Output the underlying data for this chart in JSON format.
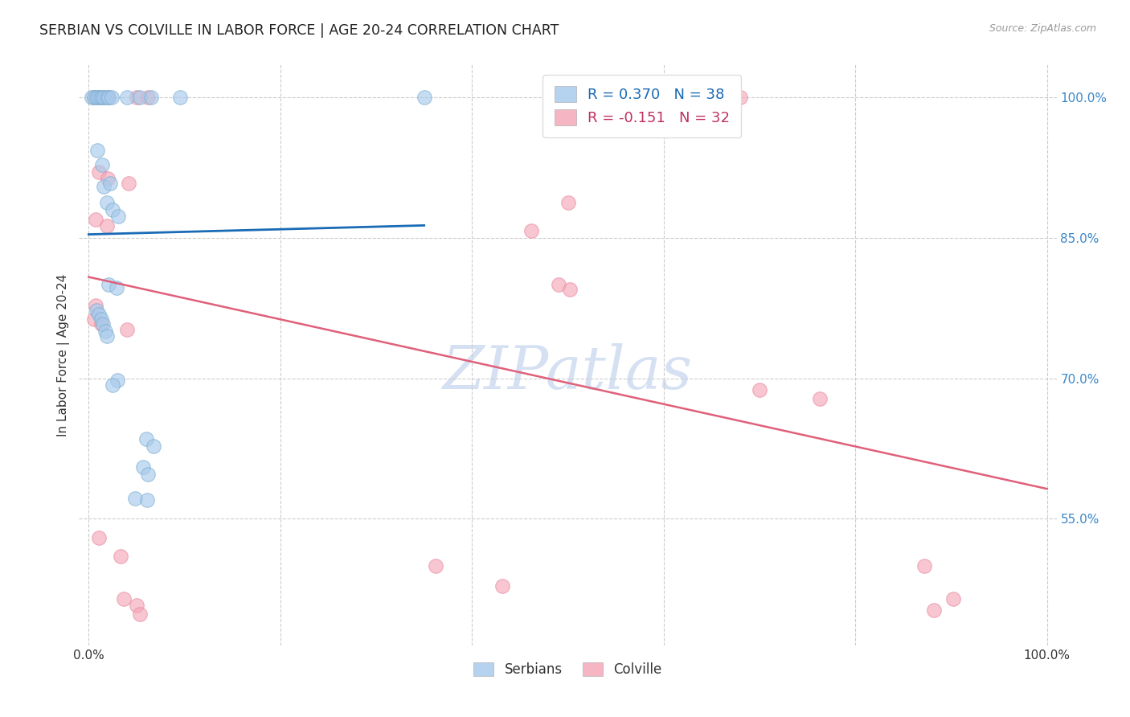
{
  "title": "SERBIAN VS COLVILLE IN LABOR FORCE | AGE 20-24 CORRELATION CHART",
  "source": "Source: ZipAtlas.com",
  "ylabel": "In Labor Force | Age 20-24",
  "xlim": [
    -0.01,
    1.01
  ],
  "ylim": [
    0.415,
    1.035
  ],
  "yticks": [
    0.55,
    0.7,
    0.85,
    1.0
  ],
  "ytick_labels": [
    "55.0%",
    "70.0%",
    "85.0%",
    "100.0%"
  ],
  "xtick_positions": [
    0.0,
    0.2,
    0.4,
    0.6,
    0.8,
    1.0
  ],
  "xtick_labels": [
    "0.0%",
    "",
    "",
    "",
    "",
    "100.0%"
  ],
  "legend_blue_r": "R = 0.370",
  "legend_blue_n": "N = 38",
  "legend_pink_r": "R = -0.151",
  "legend_pink_n": "N = 32",
  "blue_scatter_color": "#a8caec",
  "pink_scatter_color": "#f4a8b8",
  "blue_edge_color": "#7aaed0",
  "pink_edge_color": "#e888a0",
  "trendline_blue": "#1a6bb5",
  "trendline_pink": "#e0607a",
  "legend_blue_color": "#1a6bb5",
  "legend_pink_color": "#c03060",
  "watermark_color": "#c8d8ee",
  "grid_color": "#cccccc",
  "title_color": "#222222",
  "source_color": "#999999",
  "ylabel_color": "#333333",
  "ytick_color": "#3a86c8",
  "xtick_color": "#333333",
  "scatter_size": 160,
  "scatter_alpha": 0.65,
  "serbian_points": [
    [
      0.003,
      1.0
    ],
    [
      0.006,
      1.0
    ],
    [
      0.008,
      1.0
    ],
    [
      0.01,
      1.0
    ],
    [
      0.012,
      1.0
    ],
    [
      0.014,
      1.0
    ],
    [
      0.016,
      1.0
    ],
    [
      0.019,
      1.0
    ],
    [
      0.021,
      1.0
    ],
    [
      0.024,
      1.0
    ],
    [
      0.04,
      1.0
    ],
    [
      0.053,
      1.0
    ],
    [
      0.065,
      1.0
    ],
    [
      0.095,
      1.0
    ],
    [
      0.35,
      1.0
    ],
    [
      0.009,
      0.943
    ],
    [
      0.014,
      0.928
    ],
    [
      0.016,
      0.905
    ],
    [
      0.022,
      0.908
    ],
    [
      0.019,
      0.888
    ],
    [
      0.025,
      0.88
    ],
    [
      0.031,
      0.873
    ],
    [
      0.021,
      0.8
    ],
    [
      0.029,
      0.797
    ],
    [
      0.008,
      0.773
    ],
    [
      0.011,
      0.768
    ],
    [
      0.013,
      0.763
    ],
    [
      0.015,
      0.758
    ],
    [
      0.017,
      0.75
    ],
    [
      0.019,
      0.745
    ],
    [
      0.03,
      0.698
    ],
    [
      0.025,
      0.693
    ],
    [
      0.06,
      0.635
    ],
    [
      0.068,
      0.628
    ],
    [
      0.057,
      0.605
    ],
    [
      0.062,
      0.598
    ],
    [
      0.048,
      0.572
    ],
    [
      0.061,
      0.57
    ]
  ],
  "colville_points": [
    [
      0.006,
      1.0
    ],
    [
      0.011,
      1.0
    ],
    [
      0.016,
      1.0
    ],
    [
      0.021,
      1.0
    ],
    [
      0.05,
      1.0
    ],
    [
      0.062,
      1.0
    ],
    [
      0.68,
      1.0
    ],
    [
      0.011,
      0.92
    ],
    [
      0.02,
      0.913
    ],
    [
      0.042,
      0.908
    ],
    [
      0.5,
      0.888
    ],
    [
      0.007,
      0.87
    ],
    [
      0.019,
      0.863
    ],
    [
      0.462,
      0.858
    ],
    [
      0.49,
      0.8
    ],
    [
      0.502,
      0.795
    ],
    [
      0.007,
      0.778
    ],
    [
      0.006,
      0.763
    ],
    [
      0.013,
      0.758
    ],
    [
      0.04,
      0.752
    ],
    [
      0.7,
      0.688
    ],
    [
      0.763,
      0.678
    ],
    [
      0.011,
      0.53
    ],
    [
      0.033,
      0.51
    ],
    [
      0.362,
      0.5
    ],
    [
      0.432,
      0.478
    ],
    [
      0.872,
      0.5
    ],
    [
      0.902,
      0.465
    ],
    [
      0.037,
      0.465
    ],
    [
      0.05,
      0.458
    ],
    [
      0.882,
      0.453
    ],
    [
      0.053,
      0.448
    ]
  ]
}
